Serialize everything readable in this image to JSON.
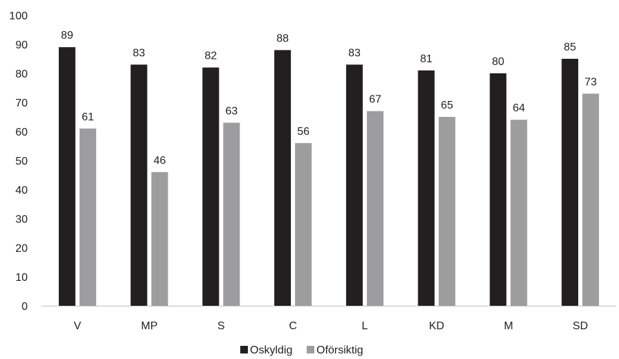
{
  "chart_data": {
    "type": "bar",
    "categories": [
      "V",
      "MP",
      "S",
      "C",
      "L",
      "KD",
      "M",
      "SD"
    ],
    "series": [
      {
        "name": "Oskyldig",
        "color": "#231f20",
        "values": [
          89,
          83,
          82,
          88,
          83,
          81,
          80,
          85
        ]
      },
      {
        "name": "Oförsiktig",
        "color": "#9d9d9f",
        "values": [
          61,
          46,
          63,
          56,
          67,
          65,
          64,
          73
        ]
      }
    ],
    "yticks": [
      "0",
      "10",
      "20",
      "30",
      "40",
      "50",
      "60",
      "70",
      "80",
      "90",
      "100"
    ],
    "ylim": [
      0,
      100
    ],
    "grid": false,
    "legend": "bottom-center",
    "title": "",
    "xlabel": "",
    "ylabel": ""
  }
}
